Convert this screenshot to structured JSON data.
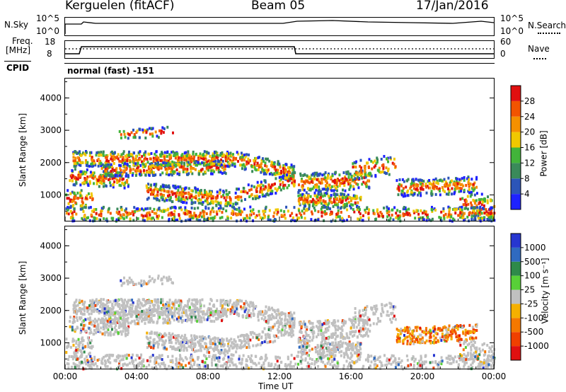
{
  "header": {
    "station": "Kerguelen (fitACF)",
    "beam": "Beam 05",
    "date": "17/Jan/2016"
  },
  "status_panels": {
    "nsky_label": "N.Sky",
    "nsearch_label": "N.Search",
    "nsky_ticks": [
      "10^5",
      "10^0"
    ],
    "nsearch_ticks": [
      "10^5",
      "10^0"
    ],
    "freq_label_line1": "Freq.",
    "freq_label_line2": "[MHz]",
    "freq_ticks": [
      "18",
      "8"
    ],
    "nave_label": "Nave",
    "nave_ticks": [
      "60",
      "0"
    ],
    "cpid_label": "CPID",
    "cpid_value": "normal (fast) -151"
  },
  "chart_data": [
    {
      "type": "heatmap",
      "quantity": "Power",
      "ylabel": "Slant Range [km]",
      "xlabel": "",
      "yticks": [
        "1000",
        "2000",
        "3000",
        "4000"
      ],
      "ylim": [
        200,
        4600
      ],
      "xlim": [
        0,
        24
      ],
      "colorbar_label": "Power [dB]",
      "colorbar_ticks": [
        "28",
        "24",
        "20",
        "16",
        "12",
        "8",
        "4"
      ],
      "colors": [
        "#1e22ff",
        "#2c55b8",
        "#3a8a5a",
        "#42b43a",
        "#f0c800",
        "#f59000",
        "#f25400",
        "#e01010"
      ]
    },
    {
      "type": "heatmap",
      "quantity": "Velocity",
      "ylabel": "Slant Range [km]",
      "xlabel": "Time UT",
      "yticks": [
        "1000",
        "2000",
        "3000",
        "4000"
      ],
      "ylim": [
        200,
        4600
      ],
      "xlim": [
        0,
        24
      ],
      "xticks": [
        "00:00",
        "04:00",
        "08:00",
        "12:00",
        "16:00",
        "20:00",
        "00:00"
      ],
      "colorbar_label": "Velocity [m s⁻¹]",
      "colorbar_ticks": [
        "1000",
        "500",
        "100",
        "25",
        "-25",
        "-100",
        "-500",
        "-1000"
      ],
      "colors": [
        "#2636d0",
        "#2f6ac0",
        "#2e8a4a",
        "#58d038",
        "#c0c0c0",
        "#f5b000",
        "#f57800",
        "#f04000",
        "#e01010"
      ]
    }
  ]
}
